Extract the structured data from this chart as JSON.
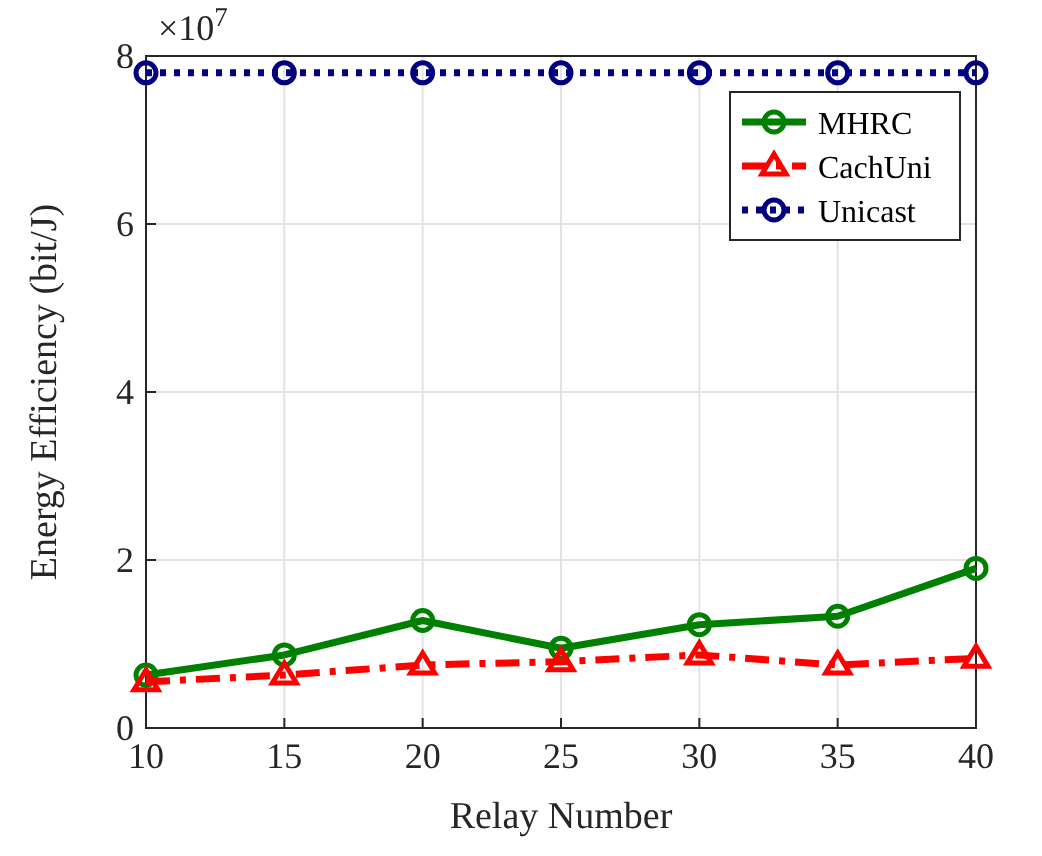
{
  "chart_data": {
    "type": "line",
    "xlabel": "Relay Number",
    "ylabel": "Energy Efficiency (bit/J)",
    "annotations": [
      "×10$^{7}$"
    ],
    "x": [
      10,
      15,
      20,
      25,
      30,
      35,
      40
    ],
    "xlim": [
      10,
      40
    ],
    "xticks": [
      10,
      15,
      20,
      25,
      30,
      35,
      40
    ],
    "ylim": [
      0,
      8
    ],
    "yticks": [
      0,
      2,
      4,
      6,
      8
    ],
    "grid": true,
    "legend": "top right",
    "series": [
      {
        "name": "MHRC",
        "color": "#008000",
        "marker": "circle",
        "line_style": "solid",
        "values": [
          0.63,
          0.87,
          1.28,
          0.95,
          1.23,
          1.33,
          1.9
        ]
      },
      {
        "name": "CachUni",
        "color": "#ff0000",
        "marker": "triangle",
        "line_style": "dashed",
        "values": [
          0.55,
          0.63,
          0.75,
          0.79,
          0.87,
          0.75,
          0.83
        ]
      },
      {
        "name": "Unicast",
        "color": "#000080",
        "marker": "circle",
        "line_style": "dotted",
        "values": [
          7.8,
          7.8,
          7.8,
          7.8,
          7.8,
          7.8,
          7.8
        ]
      }
    ]
  }
}
